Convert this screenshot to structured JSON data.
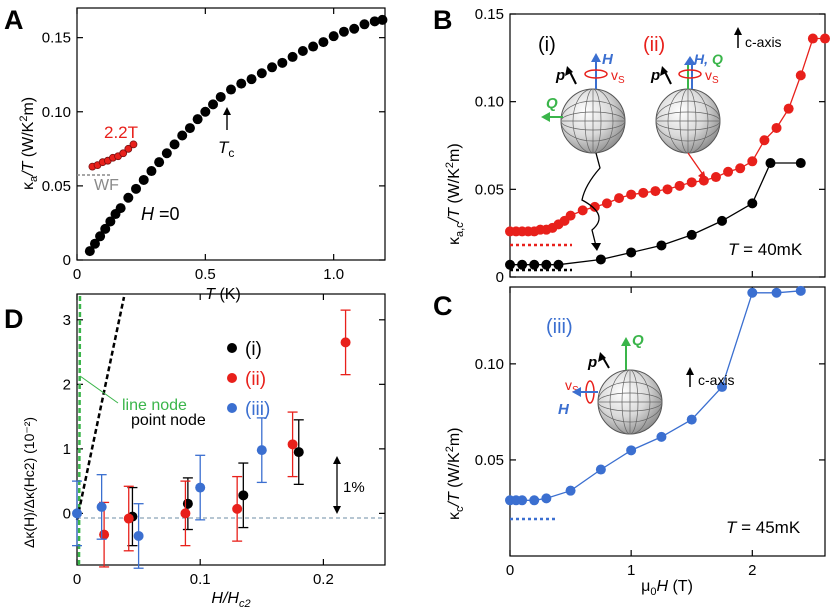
{
  "chart_data": [
    {
      "panel": "A",
      "type": "scatter",
      "xlabel_sym": "T",
      "xlabel_unit": " (K)",
      "ylabel_sym": "κ",
      "ylabel_sub": "a",
      "ylabel_rest": "/T",
      "ylabel_unit": " (W/K",
      "ylabel_unit_sup": "2",
      "ylabel_unit_end": "m)",
      "xlim": [
        0,
        1.2
      ],
      "ylim": [
        0,
        0.17
      ],
      "xticks": [
        0,
        0.5,
        1.0
      ],
      "xtick_labels": [
        "0",
        "0.5",
        "1.0"
      ],
      "yticks": [
        0,
        0.05,
        0.1,
        0.15
      ],
      "ytick_labels": [
        "0",
        "0.05",
        "0.10",
        "0.15"
      ],
      "series": [
        {
          "name": "H =0",
          "color": "#000000",
          "x": [
            0.05,
            0.07,
            0.09,
            0.11,
            0.13,
            0.15,
            0.17,
            0.2,
            0.23,
            0.26,
            0.29,
            0.32,
            0.35,
            0.38,
            0.41,
            0.44,
            0.47,
            0.5,
            0.53,
            0.56,
            0.6,
            0.64,
            0.68,
            0.72,
            0.76,
            0.8,
            0.84,
            0.88,
            0.92,
            0.96,
            1.0,
            1.04,
            1.08,
            1.12,
            1.16,
            1.19
          ],
          "y": [
            0.006,
            0.011,
            0.016,
            0.021,
            0.026,
            0.031,
            0.035,
            0.042,
            0.048,
            0.054,
            0.06,
            0.066,
            0.072,
            0.078,
            0.084,
            0.089,
            0.095,
            0.1,
            0.105,
            0.11,
            0.115,
            0.119,
            0.122,
            0.126,
            0.13,
            0.133,
            0.137,
            0.141,
            0.144,
            0.147,
            0.151,
            0.154,
            0.156,
            0.159,
            0.161,
            0.162
          ]
        },
        {
          "name": "2.2T",
          "color": "#e8201b",
          "x": [
            0.06,
            0.08,
            0.1,
            0.12,
            0.14,
            0.16,
            0.18,
            0.2,
            0.22
          ],
          "y": [
            0.063,
            0.064,
            0.066,
            0.067,
            0.069,
            0.07,
            0.072,
            0.075,
            0.078
          ]
        }
      ],
      "annotations": {
        "field_label": "2.2T",
        "wf_label": "WF",
        "wf_level": 0.057,
        "tc_sym": "T",
        "tc_sub": "c",
        "tc_value": 0.57,
        "h_sym": "H",
        "h_text": " =0"
      }
    },
    {
      "panel": "B",
      "type": "line",
      "ylabel_sym": "κ",
      "ylabel_sub": "a,c",
      "ylabel_rest": "/T",
      "ylabel_unit": " (W/K",
      "ylabel_unit_sup": "2",
      "ylabel_unit_end": "m)",
      "xlim": [
        0,
        2.6
      ],
      "ylim": [
        0,
        0.15
      ],
      "yticks": [
        0,
        0.05,
        0.1,
        0.15
      ],
      "ytick_labels": [
        "0",
        "0.05",
        "0.10",
        "0.15"
      ],
      "series": [
        {
          "name": "(ii)",
          "color": "#e8201b",
          "x": [
            0,
            0.05,
            0.1,
            0.15,
            0.2,
            0.25,
            0.3,
            0.35,
            0.4,
            0.45,
            0.5,
            0.6,
            0.7,
            0.8,
            0.9,
            1.0,
            1.1,
            1.2,
            1.3,
            1.4,
            1.5,
            1.6,
            1.7,
            1.8,
            1.9,
            2.0,
            2.1,
            2.2,
            2.3,
            2.4,
            2.5,
            2.6
          ],
          "y": [
            0.026,
            0.026,
            0.026,
            0.026,
            0.026,
            0.027,
            0.027,
            0.028,
            0.03,
            0.032,
            0.035,
            0.038,
            0.04,
            0.042,
            0.045,
            0.047,
            0.048,
            0.049,
            0.05,
            0.052,
            0.054,
            0.055,
            0.057,
            0.06,
            0.062,
            0.066,
            0.078,
            0.085,
            0.096,
            0.115,
            0.136,
            0.136
          ]
        },
        {
          "name": "(i)",
          "color": "#000000",
          "x": [
            0,
            0.1,
            0.2,
            0.3,
            0.4,
            0.75,
            1.0,
            1.25,
            1.5,
            1.75,
            2.0,
            2.15,
            2.4
          ],
          "y": [
            0.007,
            0.007,
            0.007,
            0.007,
            0.007,
            0.01,
            0.014,
            0.018,
            0.024,
            0.032,
            0.042,
            0.065,
            0.065
          ]
        }
      ],
      "annotations": {
        "label_i": "(i)",
        "label_ii": "(ii)",
        "temp_sym": "T",
        "temp_text": " = 40mK",
        "caxis": "c-axis",
        "glyph_H": "H",
        "glyph_Q": "Q",
        "glyph_p": "p",
        "glyph_vs": "v",
        "glyph_vs_sub": "S",
        "glyph_HQ_comma": ","
      }
    },
    {
      "panel": "C",
      "type": "line",
      "xlabel_mu": "μ",
      "xlabel_sub": "0",
      "xlabel_sym": "H",
      "xlabel_unit": " (T)",
      "ylabel_sym": "κ",
      "ylabel_sub": "c",
      "ylabel_rest": "/T",
      "ylabel_unit": " (W/K",
      "ylabel_unit_sup": "2",
      "ylabel_unit_end": "m)",
      "xlim": [
        0,
        2.6
      ],
      "ylim": [
        0,
        0.14
      ],
      "xticks": [
        0,
        1,
        2
      ],
      "xtick_labels": [
        "0",
        "1",
        "2"
      ],
      "yticks": [
        0.05,
        0.1
      ],
      "ytick_labels": [
        "0.05",
        "0.10"
      ],
      "series": [
        {
          "name": "(iii)",
          "color": "#3b6fd0",
          "x": [
            0,
            0.05,
            0.1,
            0.2,
            0.3,
            0.5,
            0.75,
            1.0,
            1.25,
            1.5,
            1.75,
            2.0,
            2.2,
            2.4
          ],
          "y": [
            0.029,
            0.029,
            0.029,
            0.029,
            0.03,
            0.034,
            0.045,
            0.055,
            0.062,
            0.071,
            0.088,
            0.137,
            0.137,
            0.138
          ]
        }
      ],
      "annotations": {
        "label_iii": "(iii)",
        "temp_sym": "T",
        "temp_text": " = 45mK",
        "caxis": "c-axis",
        "glyph_H": "H",
        "glyph_Q": "Q",
        "glyph_p": "p",
        "glyph_vs": "v",
        "glyph_vs_sub": "S"
      }
    },
    {
      "panel": "D",
      "type": "scatter",
      "xlabel_sym": "H/H",
      "xlabel_sub": "c2",
      "ylabel": "Δκ(H)/Δκ(Hc2)  (10⁻²)",
      "xlim": [
        0,
        0.25
      ],
      "ylim": [
        -0.8,
        3.4
      ],
      "xticks": [
        0,
        0.1,
        0.2
      ],
      "xtick_labels": [
        "0",
        "0.1",
        "0.2"
      ],
      "yticks": [
        0,
        1,
        2,
        3
      ],
      "ytick_labels": [
        "0",
        "1",
        "2",
        "3"
      ],
      "series": [
        {
          "name": "(i)",
          "color": "#000000",
          "x": [
            0.045,
            0.09,
            0.135,
            0.18
          ],
          "y": [
            -0.05,
            0.15,
            0.28,
            0.95
          ],
          "err": [
            0.45,
            0.4,
            0.5,
            0.5
          ]
        },
        {
          "name": "(ii)",
          "color": "#e8201b",
          "x": [
            0.022,
            0.042,
            0.088,
            0.13,
            0.175,
            0.218
          ],
          "y": [
            -0.33,
            -0.08,
            0.0,
            0.07,
            1.07,
            2.65
          ],
          "err": [
            0.5,
            0.5,
            0.5,
            0.5,
            0.5,
            0.5
          ]
        },
        {
          "name": "(iii)",
          "color": "#3b6fd0",
          "x": [
            0.0,
            0.02,
            0.05,
            0.1,
            0.15
          ],
          "y": [
            0.0,
            0.1,
            -0.35,
            0.4,
            0.98
          ],
          "err": [
            0.5,
            0.5,
            0.5,
            0.5,
            0.5
          ]
        }
      ],
      "annotations": {
        "line_node": "line node",
        "point_node": "point node",
        "percent": "1%",
        "leg_i": "(i)",
        "leg_ii": "(ii)",
        "leg_iii": "(iii)"
      }
    }
  ],
  "panel_labels": [
    "A",
    "B",
    "C",
    "D"
  ],
  "colors": {
    "black": "#000000",
    "red": "#e8201b",
    "blue": "#3b6fd0",
    "green": "#3ab54a",
    "gray": "#8a8a8a"
  }
}
